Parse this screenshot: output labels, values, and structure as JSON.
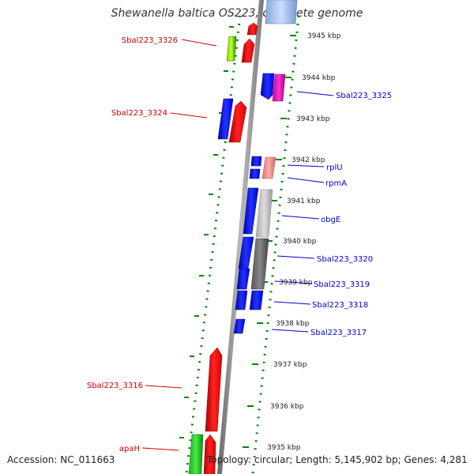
{
  "title": "Shewanella baltica OS223, complete genome",
  "footer": {
    "accession": "Accession: NC_011663",
    "summary": "Topology: circular; Length: 5,145,902 bp; Genes: 4,281"
  },
  "colors": {
    "forward": "#ff0000",
    "reverse": "#0000ff",
    "left_label": "#cc0000",
    "right_label": "#0000cc",
    "ticks": "#008800",
    "backbone": "#888888"
  },
  "scale_labels": [
    "3945 kbp",
    "3944 kbp",
    "3943 kbp",
    "3942 kbp",
    "3941 kbp",
    "3940 kbp",
    "3939 kbp",
    "3938 kbp",
    "3937 kbp",
    "3936 kbp",
    "3935 kbp"
  ],
  "left_genes": [
    "Sbal223_3326",
    "Sbal223_3324",
    "Sbal223_3316",
    "apaH"
  ],
  "right_genes": [
    "Sbal223_3325",
    "rplU",
    "rpmA",
    "obgE",
    "Sbal223_3320",
    "Sbal223_3319",
    "Sbal223_3318",
    "Sbal223_3317"
  ]
}
